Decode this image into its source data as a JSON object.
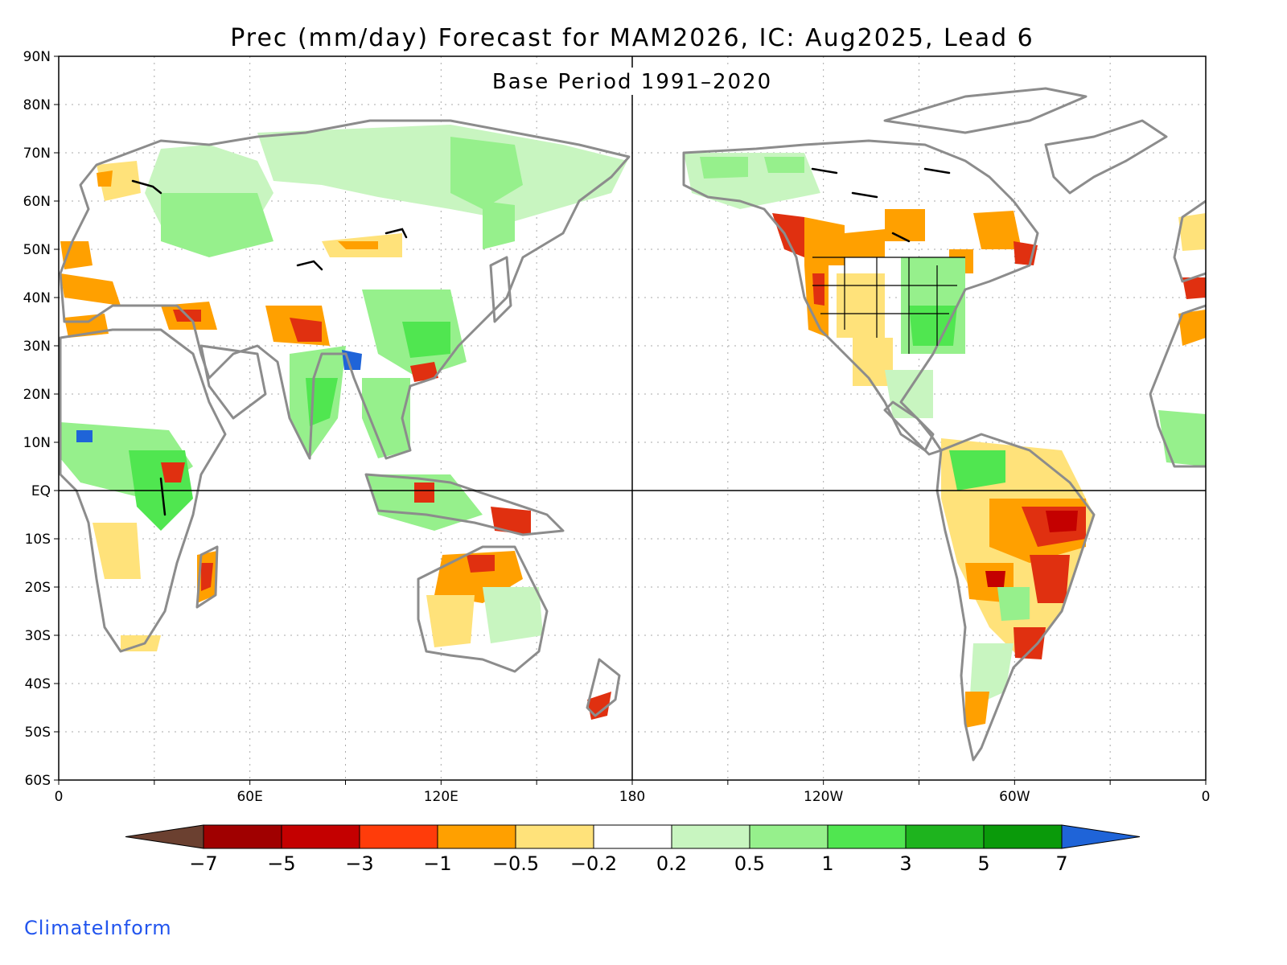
{
  "title": "Prec (mm/day) Forecast for MAM2026, IC: Aug2025, Lead 6",
  "subtitle": "Base Period 1991–2020",
  "credit": "ClimateInform",
  "lat_labels": [
    "90N",
    "80N",
    "70N",
    "60N",
    "50N",
    "40N",
    "30N",
    "20N",
    "10N",
    "EQ",
    "10S",
    "20S",
    "30S",
    "40S",
    "50S",
    "60S"
  ],
  "lon_labels": [
    "0",
    "60E",
    "120E",
    "180",
    "120W",
    "60W",
    "0"
  ],
  "colorbar": {
    "labels": [
      "−7",
      "−5",
      "−3",
      "−1",
      "−0.5",
      "−0.2",
      "0.2",
      "0.5",
      "1",
      "3",
      "5",
      "7"
    ],
    "low_extend_color": "#6b4030",
    "high_extend_color": "#1f64d8",
    "colors": [
      "#a00000",
      "#c40000",
      "#ff3c0a",
      "#ffa000",
      "#ffe27a",
      "#ffffff",
      "#c8f5c0",
      "#96f08c",
      "#50e650",
      "#1eb41e",
      "#0a9a0a"
    ]
  },
  "colors": {
    "land_outline": "#8c8c8c",
    "dry_strong": "#e03010",
    "dry_moderate": "#ffa000",
    "dry_light": "#ffe27a",
    "wet_light": "#c8f5c0",
    "wet_moderate": "#96f08c",
    "wet_strong": "#50e650",
    "wet_very_strong": "#1f64d8"
  }
}
